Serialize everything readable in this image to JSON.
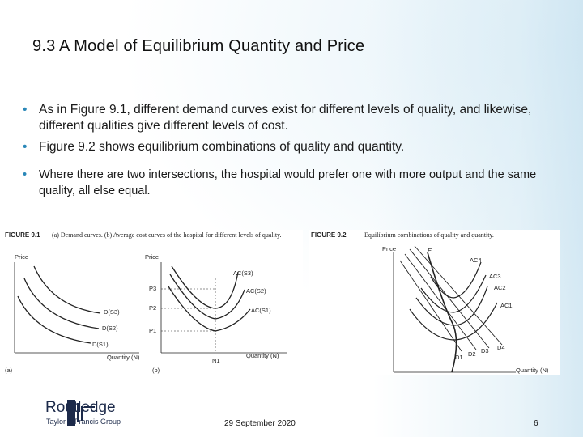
{
  "slide": {
    "title": "9.3  A Model of Equilibrium Quantity and Price",
    "bullets": [
      "As in Figure 9.1, different demand curves exist for different levels of quality, and likewise, different qualities give different levels of cost.",
      "Figure 9.2 shows equilibrium combinations of quality and quantity.",
      "Where there are two intersections, the hospital would prefer one with more output and the same quality, all else equal."
    ],
    "bullet_marker": "•"
  },
  "figure1": {
    "label": "FIGURE 9.1",
    "caption": "(a) Demand curves. (b) Average cost curves of the hospital for different levels of quality.",
    "panel_a": {
      "ylabel": "Price",
      "xlabel": "Quantity (N)",
      "panel_tag": "(a)",
      "curves": [
        "D(S3)",
        "D(S2)",
        "D(S1)"
      ]
    },
    "panel_b": {
      "ylabel": "Price",
      "xlabel": "Quantity (N)",
      "panel_tag": "(b)",
      "curves": [
        "AC(S3)",
        "AC(S2)",
        "AC(S1)"
      ],
      "price_levels": [
        "P3",
        "P2",
        "P1"
      ],
      "quantity_level": "N1"
    }
  },
  "figure2": {
    "label": "FIGURE 9.2",
    "caption": "Equilibrium combinations of quality and quantity.",
    "ylabel": "Price",
    "xlabel": "Quantity (N)",
    "locus": "E",
    "ac_curves": [
      "AC4",
      "AC3",
      "AC2",
      "AC1"
    ],
    "demand_curves": [
      "D1",
      "D2",
      "D3",
      "D4"
    ]
  },
  "footer": {
    "brand": "Routledge",
    "brand_sub": "Taylor & Francis Group",
    "date": "29 September 2020",
    "page": "6"
  },
  "colors": {
    "bullet": "#2a87b8",
    "brand": "#1c2a4a"
  }
}
